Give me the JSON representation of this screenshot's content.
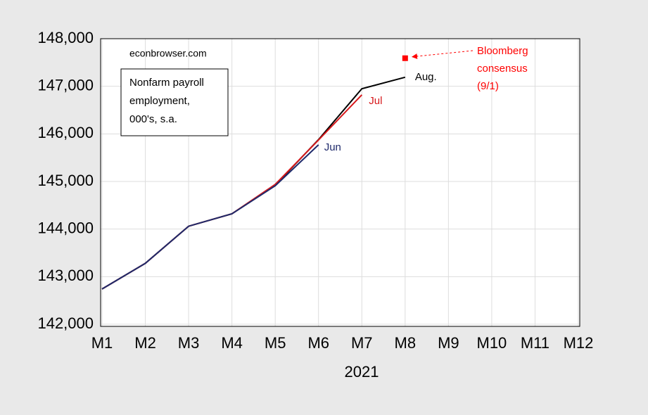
{
  "chart_data": {
    "type": "line",
    "xlabel": "2021",
    "source": "econbrowser.com",
    "box_text": [
      "Nonfarm payroll",
      "employment,",
      "000's, s.a."
    ],
    "categories": [
      "M1",
      "M2",
      "M3",
      "M4",
      "M5",
      "M6",
      "M7",
      "M8",
      "M9",
      "M10",
      "M11",
      "M12"
    ],
    "series": [
      {
        "name": "Aug.",
        "color": "#000000",
        "values": [
          142740,
          143280,
          144060,
          144320,
          144920,
          145880,
          146950,
          147190,
          null,
          null,
          null,
          null
        ]
      },
      {
        "name": "Jul",
        "color": "#d7191c",
        "values": [
          142740,
          143280,
          144060,
          144320,
          144940,
          145870,
          146820,
          null,
          null,
          null,
          null,
          null
        ]
      },
      {
        "name": "Jun",
        "color": "#1f2a6b",
        "values": [
          142740,
          143280,
          144060,
          144320,
          144910,
          145770,
          null,
          null,
          null,
          null,
          null,
          null
        ]
      },
      {
        "name": "Bloomberg consensus (9/1)",
        "color": "#ff0000",
        "marker": "square",
        "values": [
          null,
          null,
          null,
          null,
          null,
          null,
          null,
          147590,
          null,
          null,
          null,
          null
        ]
      }
    ],
    "ylim": [
      142000,
      148000
    ],
    "yticks": [
      {
        "value": 142000,
        "label": "142,000"
      },
      {
        "value": 143000,
        "label": "143,000"
      },
      {
        "value": 144000,
        "label": "144,000"
      },
      {
        "value": 145000,
        "label": "145,000"
      },
      {
        "value": 146000,
        "label": "146,000"
      },
      {
        "value": 147000,
        "label": "147,000"
      },
      {
        "value": 148000,
        "label": "148,000"
      }
    ],
    "grid": true
  }
}
